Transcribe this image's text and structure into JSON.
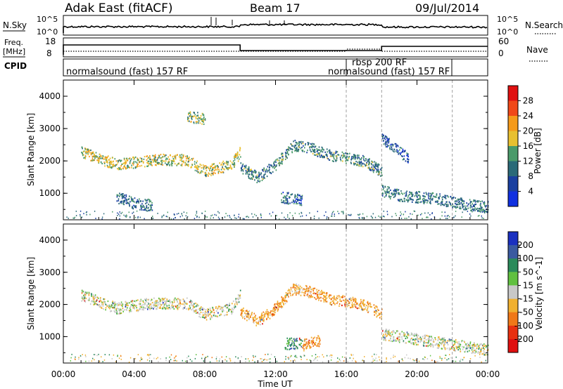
{
  "header": {
    "station": "Adak East (fitACF)",
    "beam": "Beam 17",
    "date": "09/Jul/2014"
  },
  "strips": {
    "nsky_label": "N.Sky",
    "nsearch_label": "N.Search",
    "nsky_ticks": [
      "10^5",
      "10^0"
    ],
    "nsearch_ticks": [
      "10^5",
      "10^0"
    ],
    "freq_label": "Freq.",
    "freq_unit": "[MHz]",
    "freq_ticks": [
      "18",
      "8"
    ],
    "nave_label": "Nave",
    "nave_ticks": [
      "60",
      "0"
    ],
    "cpid_label": "CPID",
    "cpid_segments": [
      {
        "label": "normalsound (fast) 157 RF",
        "start": 0
      },
      {
        "label": "rbsp 200 RF",
        "start": 16
      },
      {
        "label": "normalsound (fast) 157 RF",
        "start": 18
      }
    ]
  },
  "power_panel": {
    "ylabel": "Slant Range [km]",
    "yticks": [
      "4000",
      "3000",
      "2000",
      "1000"
    ],
    "colorbar_label": "Power [dB]",
    "colorbar_ticks": [
      "28",
      "24",
      "20",
      "16",
      "12",
      "8",
      "4"
    ],
    "colorbar_colors": [
      "#e01010",
      "#f04818",
      "#f59a1a",
      "#e8c030",
      "#4a9a6a",
      "#2a6a78",
      "#1a40a0",
      "#1030e0"
    ]
  },
  "velocity_panel": {
    "ylabel": "Slant Range [km]",
    "yticks": [
      "4000",
      "3000",
      "2000",
      "1000"
    ],
    "colorbar_label": "Velocity [m s^-1]",
    "colorbar_ticks": [
      "200",
      "100",
      "50",
      "15",
      "-15",
      "-50",
      "-100",
      "-200"
    ],
    "colorbar_colors": [
      "#1a30c0",
      "#3a5aa0",
      "#2a8a5a",
      "#60c040",
      "#c8c8c8",
      "#f0b030",
      "#f07818",
      "#e83010",
      "#e01010"
    ]
  },
  "xaxis": {
    "label": "Time UT",
    "ticks": [
      "00:00",
      "04:00",
      "08:00",
      "12:00",
      "16:00",
      "20:00",
      "00:00"
    ]
  },
  "chart_data": [
    {
      "type": "heatmap",
      "title": "Power",
      "xlabel": "Time UT",
      "ylabel": "Slant Range [km]",
      "xlim": [
        0,
        24
      ],
      "ylim": [
        180,
        4500
      ],
      "colorbar": {
        "label": "Power [dB]",
        "range": [
          0,
          30
        ]
      },
      "dashed_markers_hours": [
        16,
        18,
        22
      ],
      "echo_bands": [
        {
          "t": [
            1.0,
            3.0,
            5.0,
            7.0,
            8.0,
            9.5,
            10.0
          ],
          "range_km": [
            2300,
            1900,
            2050,
            2050,
            1700,
            1900,
            2300
          ],
          "power_db": 16
        },
        {
          "t": [
            10.0,
            11.0,
            12.0,
            13.0,
            14.0,
            15.0,
            16.0,
            17.0,
            18.0
          ],
          "range_km": [
            1800,
            1500,
            1900,
            2500,
            2400,
            2200,
            2100,
            2000,
            1700
          ],
          "power_db": 10
        },
        {
          "t": [
            3.0,
            4.0,
            5.0
          ],
          "range_km": [
            900,
            700,
            650
          ],
          "power_db": 8
        },
        {
          "t": [
            18.0,
            19.0,
            20.0,
            21.0,
            22.0,
            23.0,
            24.0
          ],
          "range_km": [
            1100,
            950,
            900,
            850,
            750,
            650,
            600
          ],
          "power_db": 9
        },
        {
          "t": [
            7.0,
            8.0
          ],
          "range_km": [
            3400,
            3300
          ],
          "power_db": 14
        },
        {
          "t": [
            12.3,
            13.5
          ],
          "range_km": [
            900,
            800
          ],
          "power_db": 7
        },
        {
          "t": [
            18.0,
            19.5
          ],
          "range_km": [
            2700,
            2100
          ],
          "power_db": 6
        }
      ]
    },
    {
      "type": "heatmap",
      "title": "Velocity",
      "xlabel": "Time UT",
      "ylabel": "Slant Range [km]",
      "xlim": [
        0,
        24
      ],
      "ylim": [
        180,
        4500
      ],
      "colorbar": {
        "label": "Velocity [m s^-1]",
        "range": [
          -200,
          200
        ]
      },
      "dashed_markers_hours": [
        16,
        18,
        22
      ],
      "echo_bands": [
        {
          "t": [
            1.0,
            3.0,
            5.0,
            7.0,
            8.0,
            9.5,
            10.0
          ],
          "range_km": [
            2300,
            1900,
            2050,
            2050,
            1700,
            1900,
            2300
          ],
          "velocity_ms": 0
        },
        {
          "t": [
            10.0,
            11.0,
            12.0,
            13.0,
            14.0,
            15.0,
            16.0,
            17.0,
            18.0
          ],
          "range_km": [
            1800,
            1500,
            1900,
            2500,
            2400,
            2200,
            2100,
            2000,
            1700
          ],
          "velocity_ms": -40
        },
        {
          "t": [
            12.5,
            13.5
          ],
          "range_km": [
            800,
            800
          ],
          "velocity_ms": 40
        },
        {
          "t": [
            13.5,
            14.5
          ],
          "range_km": [
            750,
            900
          ],
          "velocity_ms": -60
        },
        {
          "t": [
            18.0,
            24.0
          ],
          "range_km": [
            1100,
            600
          ],
          "velocity_ms": 0
        }
      ]
    }
  ]
}
